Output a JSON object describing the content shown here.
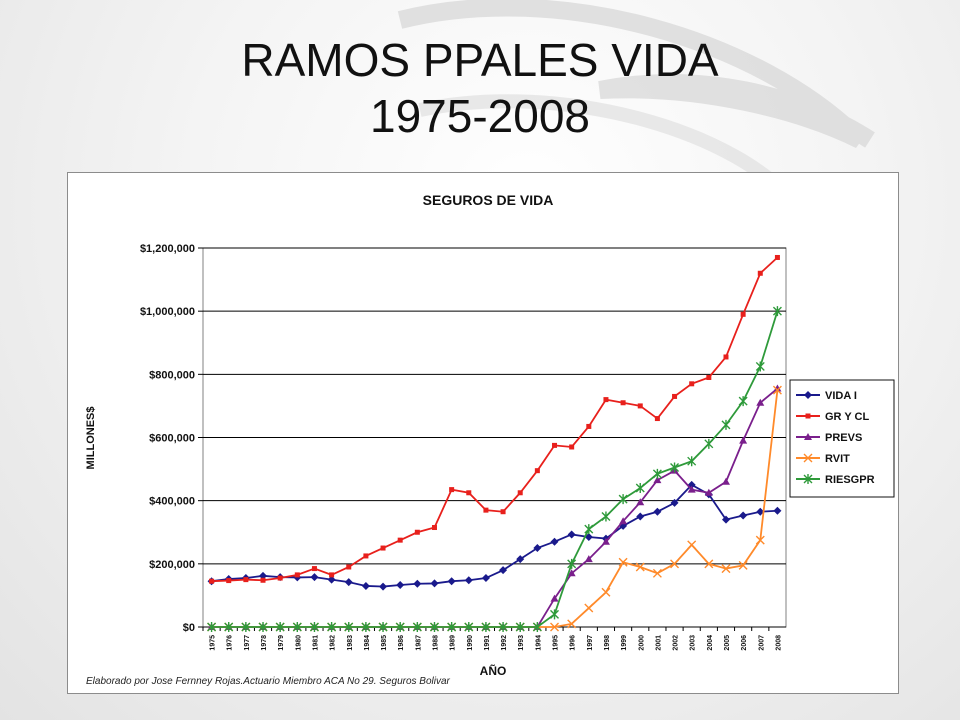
{
  "slide": {
    "title_line1": "RAMOS PPALES VIDA",
    "title_line2": "1975-2008",
    "credit": "Elaborado por Jose Fernney Rojas.Actuario Miembro ACA No 29. Seguros Bolivar"
  },
  "chart_data": {
    "type": "line",
    "title": "SEGUROS DE VIDA",
    "xlabel": "AÑO",
    "ylabel": "MILLONES$",
    "ylim": [
      0,
      1200000
    ],
    "yticks": [
      0,
      200000,
      400000,
      600000,
      800000,
      1000000,
      1200000
    ],
    "ytick_labels": [
      "$0",
      "$200,000",
      "$400,000",
      "$600,000",
      "$800,000",
      "$1,000,000",
      "$1,200,000"
    ],
    "grid": true,
    "legend_position": "right",
    "categories": [
      "1975",
      "1976",
      "1977",
      "1978",
      "1979",
      "1980",
      "1981",
      "1982",
      "1983",
      "1984",
      "1985",
      "1986",
      "1987",
      "1988",
      "1989",
      "1990",
      "1991",
      "1992",
      "1993",
      "1994",
      "1995",
      "1996",
      "1997",
      "1998",
      "1999",
      "2000",
      "2001",
      "2002",
      "2003",
      "2004",
      "2005",
      "2006",
      "2007",
      "2008"
    ],
    "series": [
      {
        "name": "VIDA I",
        "color": "#1a1a8c",
        "marker": "diamond",
        "values": [
          145000,
          152000,
          155000,
          162000,
          158000,
          157000,
          158000,
          150000,
          142000,
          130000,
          128000,
          133000,
          137000,
          138000,
          145000,
          148000,
          155000,
          180000,
          215000,
          250000,
          270000,
          293000,
          285000,
          280000,
          320000,
          350000,
          365000,
          393000,
          450000,
          420000,
          340000,
          353000,
          365000,
          368000
        ]
      },
      {
        "name": "GR Y CL",
        "color": "#e8201c",
        "marker": "square",
        "values": [
          145000,
          147000,
          150000,
          148000,
          155000,
          165000,
          185000,
          165000,
          190000,
          225000,
          250000,
          275000,
          300000,
          315000,
          435000,
          425000,
          370000,
          365000,
          425000,
          495000,
          575000,
          570000,
          635000,
          720000,
          710000,
          700000,
          660000,
          730000,
          770000,
          790000,
          855000,
          990000,
          1120000,
          1170000
        ]
      },
      {
        "name": "PREVS",
        "color": "#7a1f8c",
        "marker": "triangle",
        "values": [
          0,
          0,
          0,
          0,
          0,
          0,
          0,
          0,
          0,
          0,
          0,
          0,
          0,
          0,
          0,
          0,
          0,
          0,
          0,
          0,
          90000,
          170000,
          215000,
          270000,
          335000,
          395000,
          465000,
          495000,
          435000,
          425000,
          460000,
          590000,
          710000,
          755000
        ]
      },
      {
        "name": "RVIT",
        "color": "#ff8a2a",
        "marker": "x",
        "values": [
          0,
          0,
          0,
          0,
          0,
          0,
          0,
          0,
          0,
          0,
          0,
          0,
          0,
          0,
          0,
          0,
          0,
          0,
          0,
          0,
          0,
          10000,
          60000,
          110000,
          205000,
          190000,
          170000,
          200000,
          260000,
          200000,
          185000,
          195000,
          275000,
          750000
        ]
      },
      {
        "name": "RIESGPR",
        "color": "#2e9a3a",
        "marker": "star",
        "values": [
          0,
          0,
          0,
          0,
          0,
          0,
          0,
          0,
          0,
          0,
          0,
          0,
          0,
          0,
          0,
          0,
          0,
          0,
          0,
          0,
          40000,
          200000,
          310000,
          350000,
          405000,
          440000,
          485000,
          505000,
          525000,
          580000,
          640000,
          715000,
          825000,
          1000000
        ]
      }
    ]
  }
}
